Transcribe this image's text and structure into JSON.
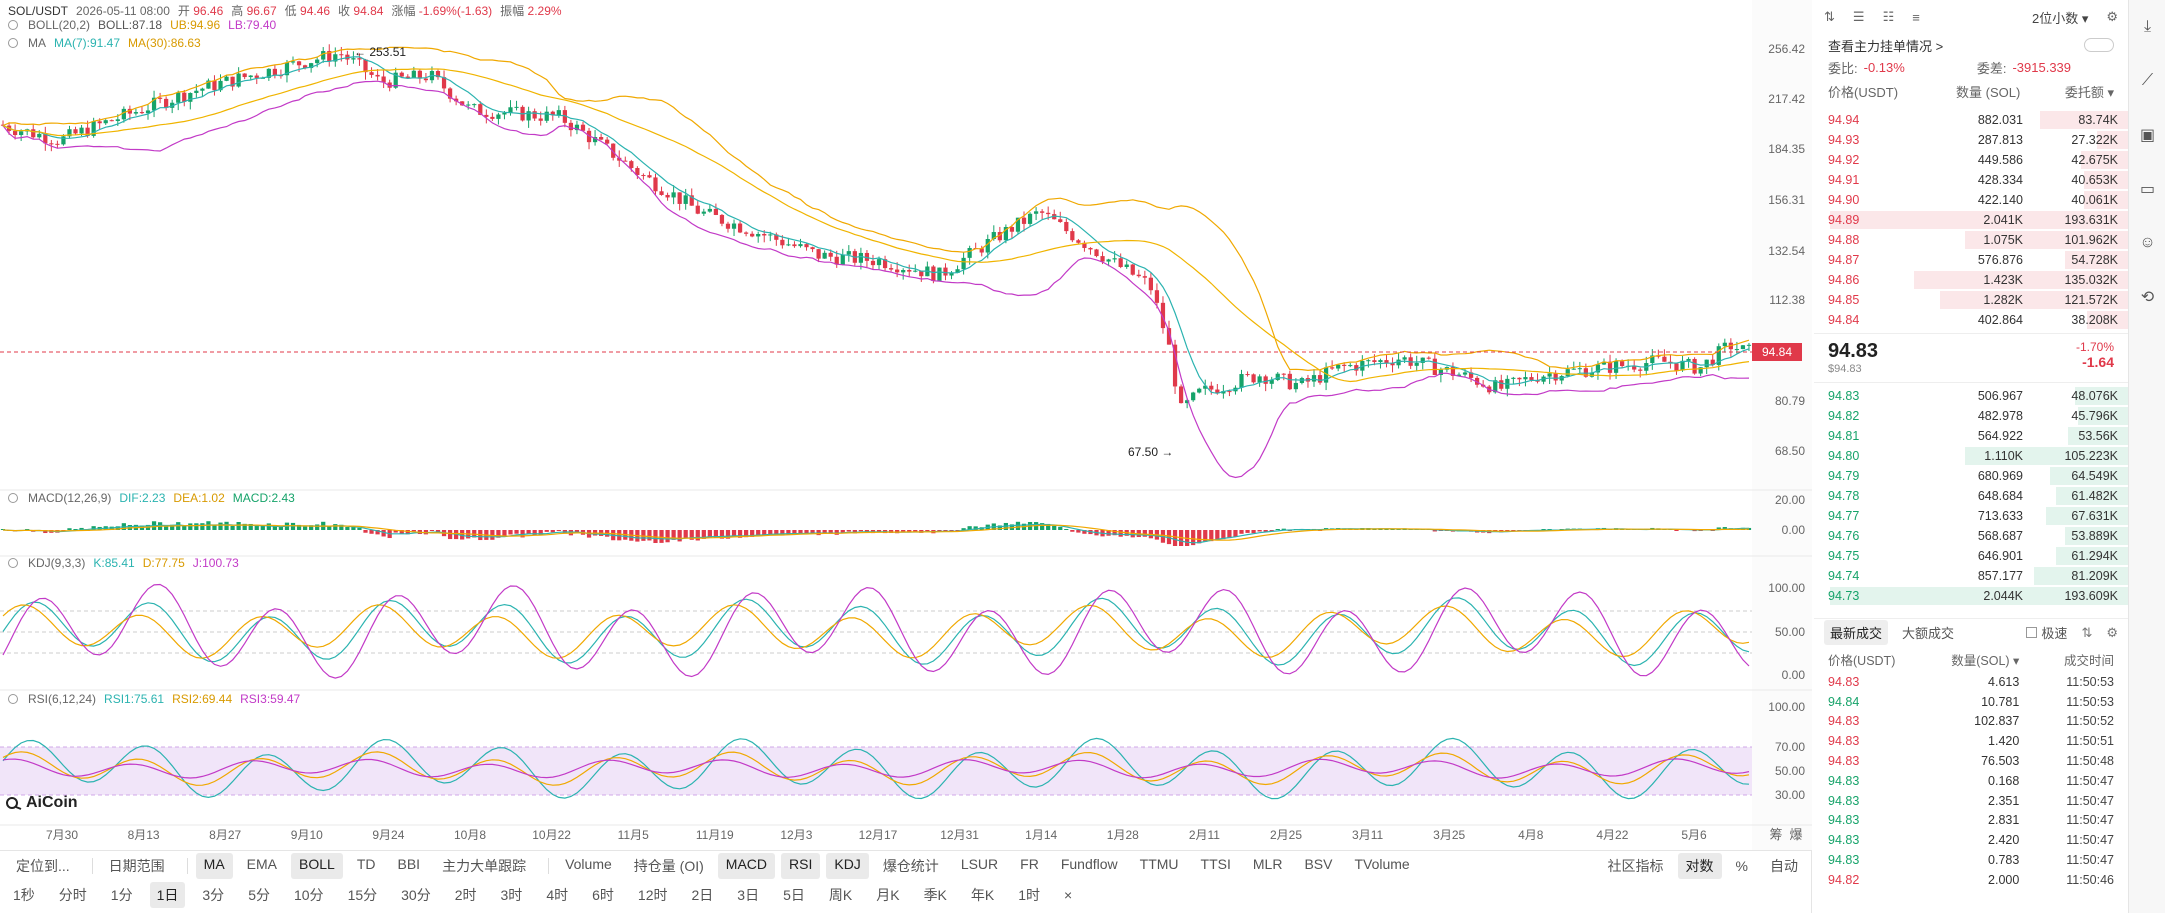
{
  "header": {
    "symbol": "SOL/USDT",
    "datetime": "2026-05-11 08:00",
    "open_label": "开",
    "open": "96.46",
    "high_label": "高",
    "high": "96.67",
    "low_label": "低",
    "low": "94.46",
    "close_label": "收",
    "close": "94.84",
    "change_label": "涨幅",
    "change": "-1.69%(-1.63)",
    "amp_label": "振幅",
    "amp": "2.29%"
  },
  "boll": {
    "label": "BOLL(20,2)",
    "mid": "BOLL:87.18",
    "ub": "UB:94.96",
    "lb": "LB:79.40"
  },
  "ma": {
    "label": "MA",
    "ma7": "MA(7):91.47",
    "ma30": "MA(30):86.63"
  },
  "macd": {
    "label": "MACD(12,26,9)",
    "dif": "DIF:2.23",
    "dea": "DEA:1.02",
    "macd": "MACD:2.43"
  },
  "kdj": {
    "label": "KDJ(9,3,3)",
    "k": "K:85.41",
    "d": "D:77.75",
    "j": "J:100.73"
  },
  "rsi": {
    "label": "RSI(6,12,24)",
    "r1": "RSI1:75.61",
    "r2": "RSI2:69.44",
    "r3": "RSI3:59.47"
  },
  "price_axis": [
    "256.42",
    "217.42",
    "184.35",
    "156.31",
    "132.54",
    "112.38",
    "94.84",
    "80.79",
    "68.50"
  ],
  "macd_axis": [
    "20.00",
    "0.00"
  ],
  "kdj_axis": [
    "100.00",
    "50.00",
    "0.00"
  ],
  "rsi_axis": [
    "100.00",
    "70.00",
    "50.00",
    "30.00"
  ],
  "current_price_tag": "94.84",
  "high_marker": "← 253.51",
  "low_marker": "67.50 →",
  "date_axis": [
    "7月30",
    "8月13",
    "8月27",
    "9月10",
    "9月24",
    "10月8",
    "10月22",
    "11月5",
    "11月19",
    "12月3",
    "12月17",
    "12月31",
    "1月14",
    "1月28",
    "2月11",
    "2月25",
    "3月11",
    "3月25",
    "4月8",
    "4月22",
    "5月6"
  ],
  "axis_corner": [
    "筹",
    "爆"
  ],
  "watermark": "AiCoin",
  "toolbar_row1": {
    "left": [
      "定位到...",
      "日期范围"
    ],
    "indicators": [
      "MA",
      "EMA",
      "BOLL",
      "TD",
      "BBI",
      "主力大单跟踪"
    ],
    "indicators_active": [
      "MA",
      "BOLL"
    ],
    "sub": [
      "Volume",
      "持仓量 (OI)",
      "MACD",
      "RSI",
      "KDJ",
      "爆仓统计",
      "LSUR",
      "FR",
      "Fundflow",
      "TTMU",
      "TTSI",
      "MLR",
      "BSV",
      "TVolume"
    ],
    "sub_active": [
      "MACD",
      "RSI",
      "KDJ"
    ],
    "right": [
      "社区指标",
      "对数",
      "%",
      "自动"
    ]
  },
  "toolbar_row2": {
    "items": [
      "1秒",
      "分时",
      "1分",
      "1日",
      "3分",
      "5分",
      "10分",
      "15分",
      "30分",
      "2时",
      "3时",
      "4时",
      "6时",
      "12时",
      "2日",
      "3日",
      "5日",
      "周K",
      "月K",
      "季K",
      "年K",
      "1时",
      "×"
    ],
    "active": "1日"
  },
  "orderbook": {
    "decimals": "2位小数",
    "main_orders": "查看主力挂单情况 >",
    "ratio_label": "委比:",
    "ratio": "-0.13%",
    "diff_label": "委差:",
    "diff": "-3915.339",
    "headers": [
      "价格(USDT)",
      "数量 (SOL)",
      "委托额"
    ],
    "asks": [
      {
        "price": "94.94",
        "qty": "882.031",
        "amt": "83.74K",
        "depth": 0.28
      },
      {
        "price": "94.93",
        "qty": "287.813",
        "amt": "27.322K",
        "depth": 0.1
      },
      {
        "price": "94.92",
        "qty": "449.586",
        "amt": "42.675K",
        "depth": 0.15
      },
      {
        "price": "94.91",
        "qty": "428.334",
        "amt": "40.653K",
        "depth": 0.14
      },
      {
        "price": "94.90",
        "qty": "422.140",
        "amt": "40.061K",
        "depth": 0.14
      },
      {
        "price": "94.89",
        "qty": "2.041K",
        "amt": "193.631K",
        "depth": 0.95
      },
      {
        "price": "94.88",
        "qty": "1.075K",
        "amt": "101.962K",
        "depth": 0.52
      },
      {
        "price": "94.87",
        "qty": "576.876",
        "amt": "54.728K",
        "depth": 0.2
      },
      {
        "price": "94.86",
        "qty": "1.423K",
        "amt": "135.032K",
        "depth": 0.68
      },
      {
        "price": "94.85",
        "qty": "1.282K",
        "amt": "121.572K",
        "depth": 0.6
      },
      {
        "price": "94.84",
        "qty": "402.864",
        "amt": "38.208K",
        "depth": 0.13
      }
    ],
    "last_price": "94.83",
    "last_price_sub": "$94.83",
    "last_change_pct": "-1.70%",
    "last_change": "-1.64",
    "bids": [
      {
        "price": "94.83",
        "qty": "506.967",
        "amt": "48.076K",
        "depth": 0.17
      },
      {
        "price": "94.82",
        "qty": "482.978",
        "amt": "45.796K",
        "depth": 0.16
      },
      {
        "price": "94.81",
        "qty": "564.922",
        "amt": "53.56K",
        "depth": 0.19
      },
      {
        "price": "94.80",
        "qty": "1.110K",
        "amt": "105.223K",
        "depth": 0.52
      },
      {
        "price": "94.79",
        "qty": "680.969",
        "amt": "64.549K",
        "depth": 0.25
      },
      {
        "price": "94.78",
        "qty": "648.684",
        "amt": "61.482K",
        "depth": 0.23
      },
      {
        "price": "94.77",
        "qty": "713.633",
        "amt": "67.631K",
        "depth": 0.26
      },
      {
        "price": "94.76",
        "qty": "568.687",
        "amt": "53.889K",
        "depth": 0.2
      },
      {
        "price": "94.75",
        "qty": "646.901",
        "amt": "61.294K",
        "depth": 0.23
      },
      {
        "price": "94.74",
        "qty": "857.177",
        "amt": "81.209K",
        "depth": 0.3
      },
      {
        "price": "94.73",
        "qty": "2.044K",
        "amt": "193.609K",
        "depth": 0.95
      }
    ]
  },
  "trades": {
    "tabs": [
      "最新成交",
      "大额成交"
    ],
    "fast_label": "极速",
    "headers": [
      "价格(USDT)",
      "数量(SOL)",
      "成交时间"
    ],
    "rows": [
      {
        "price": "94.83",
        "qty": "4.613",
        "time": "11:50:53",
        "side": "sell"
      },
      {
        "price": "94.84",
        "qty": "10.781",
        "time": "11:50:53",
        "side": "buy"
      },
      {
        "price": "94.83",
        "qty": "102.837",
        "time": "11:50:52",
        "side": "sell"
      },
      {
        "price": "94.83",
        "qty": "1.420",
        "time": "11:50:51",
        "side": "sell"
      },
      {
        "price": "94.83",
        "qty": "76.503",
        "time": "11:50:48",
        "side": "sell"
      },
      {
        "price": "94.83",
        "qty": "0.168",
        "time": "11:50:47",
        "side": "buy"
      },
      {
        "price": "94.83",
        "qty": "2.351",
        "time": "11:50:47",
        "side": "buy"
      },
      {
        "price": "94.83",
        "qty": "2.831",
        "time": "11:50:47",
        "side": "buy"
      },
      {
        "price": "94.83",
        "qty": "2.420",
        "time": "11:50:47",
        "side": "buy"
      },
      {
        "price": "94.83",
        "qty": "0.783",
        "time": "11:50:47",
        "side": "buy"
      },
      {
        "price": "94.82",
        "qty": "2.000",
        "time": "11:50:46",
        "side": "sell"
      }
    ]
  },
  "colors": {
    "up": "#16a36a",
    "down": "#e0394a",
    "boll_mid": "#333333",
    "ub": "#f0a800",
    "lb": "#c23ac7",
    "ma7": "#2bb3b0",
    "ma30": "#f0b400"
  }
}
